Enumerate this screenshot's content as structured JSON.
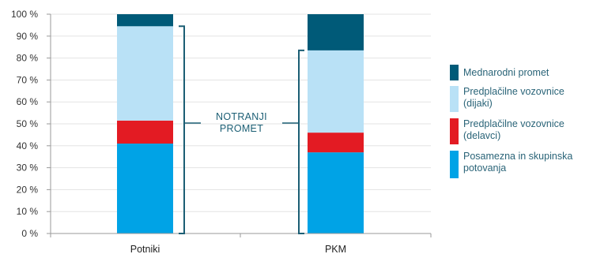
{
  "chart_data": {
    "type": "bar",
    "stacked": true,
    "percent": true,
    "categories": [
      "Potniki",
      "PKM"
    ],
    "series": [
      {
        "name": "Posamezna in skupinska potovanja",
        "values": [
          41,
          37
        ],
        "color": "#00a3e6"
      },
      {
        "name": "Predplačilne vozovnice (delavci)",
        "values": [
          10.5,
          9
        ],
        "color": "#e31b23"
      },
      {
        "name": "Predplačilne vozovnice (dijaki)",
        "values": [
          43,
          37.5
        ],
        "color": "#b9e1f6"
      },
      {
        "name": "Mednarodni promet",
        "values": [
          5.5,
          16.5
        ],
        "color": "#005a78"
      }
    ],
    "legend_order": [
      "Mednarodni promet",
      "Predplačilne vozovnice (dijaki)",
      "Predplačilne vozovnice (delavci)",
      "Posamezna in skupinska potovanja"
    ],
    "legend_lines": [
      [
        "Mednarodni promet"
      ],
      [
        "Predplačilne vozovnice",
        "(dijaki)"
      ],
      [
        "Predplačilne vozovnice",
        "(delavci)"
      ],
      [
        "Posamezna in skupinska",
        "potovanja"
      ]
    ],
    "y_ticks": [
      "0 %",
      "10 %",
      "20 %",
      "30 %",
      "40 %",
      "50 %",
      "60 %",
      "70 %",
      "80 %",
      "90 %",
      "100 %"
    ],
    "ylim": [
      0,
      100
    ],
    "grid": true,
    "legend_position": "right",
    "annotation": {
      "lines": [
        "NOTRANJI",
        "PROMET"
      ],
      "brackets": [
        {
          "category": "Potniki",
          "from": 0,
          "to": 94.5
        },
        {
          "category": "PKM",
          "from": 0,
          "to": 83.5
        }
      ],
      "color": "#1b5e74"
    },
    "title": "",
    "xlabel": "",
    "ylabel": ""
  }
}
